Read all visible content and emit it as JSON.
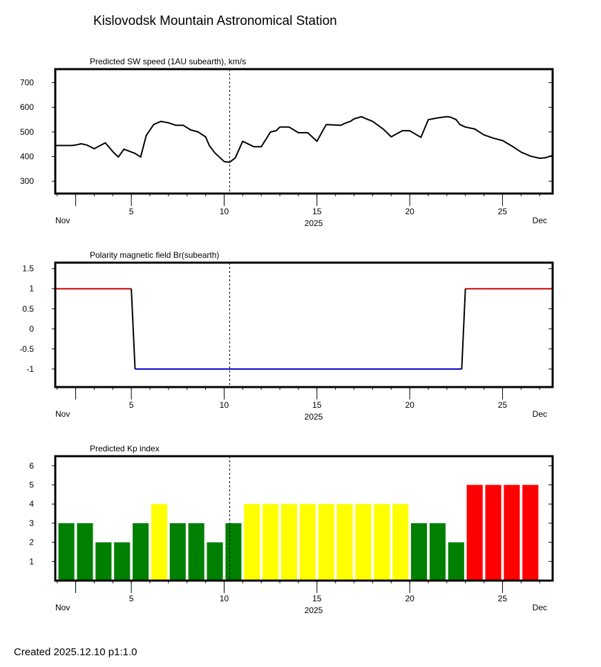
{
  "title": "Kislovodsk Mountain Astronomical Station",
  "footer": "Created  2025.12.10    p1:1.0",
  "chart_data": [
    {
      "type": "line",
      "title": "Predicted SW speed (1AU subearth), km/s",
      "xlabel": "2025",
      "x_start_label": "Nov",
      "x_end_label": "Dec",
      "xlim": [
        0.9,
        27.7
      ],
      "ylim": [
        250,
        755
      ],
      "yticks": [
        300,
        400,
        500,
        600,
        700
      ],
      "xticks": [
        2,
        5,
        10,
        15,
        20,
        25
      ],
      "xtick_labels": [
        "5",
        "10",
        "15",
        "20",
        "25"
      ],
      "current_time": 10.3,
      "series": [
        {
          "name": "SW speed",
          "color": "#000000",
          "x": [
            0.9,
            1.8,
            2.0,
            2.3,
            2.6,
            3.0,
            3.6,
            4.0,
            4.3,
            4.6,
            5.2,
            5.5,
            5.8,
            6.2,
            6.6,
            7.0,
            7.4,
            7.8,
            8.2,
            8.6,
            9.0,
            9.2,
            9.5,
            10.0,
            10.3,
            10.6,
            11.0,
            11.6,
            12.0,
            12.5,
            12.8,
            13.0,
            13.5,
            14.0,
            14.5,
            15.0,
            15.5,
            16.0,
            16.3,
            16.5,
            16.8,
            17.0,
            17.4,
            17.6,
            18.0,
            18.6,
            19.0,
            19.6,
            20.0,
            20.6,
            21.0,
            21.5,
            22.0,
            22.2,
            22.5,
            22.7,
            23.0,
            23.5,
            24.0,
            24.5,
            25.0,
            25.5,
            26.0,
            26.5,
            27.0,
            27.3,
            27.7
          ],
          "values": [
            445,
            445,
            447,
            452,
            447,
            432,
            456,
            420,
            398,
            430,
            413,
            398,
            485,
            530,
            543,
            537,
            527,
            527,
            508,
            500,
            480,
            445,
            415,
            380,
            377,
            395,
            462,
            440,
            440,
            500,
            505,
            520,
            520,
            497,
            497,
            462,
            530,
            528,
            527,
            535,
            543,
            553,
            562,
            555,
            543,
            510,
            480,
            505,
            505,
            478,
            550,
            557,
            562,
            560,
            550,
            530,
            520,
            512,
            488,
            475,
            465,
            443,
            418,
            402,
            393,
            395,
            405
          ]
        }
      ]
    },
    {
      "type": "line",
      "title": "Polarity magnetic field  Br(subearth)",
      "xlabel": "2025",
      "x_start_label": "Nov",
      "x_end_label": "Dec",
      "xlim": [
        0.9,
        27.7
      ],
      "ylim": [
        -1.45,
        1.65
      ],
      "yticks": [
        1.5,
        1,
        0.5,
        0,
        -0.5,
        -1
      ],
      "ytick_labels": [
        "1.5",
        "1",
        "0.5",
        "0",
        "-0.5",
        "-1"
      ],
      "xticks": [
        2,
        5,
        10,
        15,
        20,
        25
      ],
      "xtick_labels": [
        "5",
        "10",
        "15",
        "20",
        "25"
      ],
      "current_time": 10.3,
      "series": [
        {
          "name": "positive",
          "color": "#cc0000",
          "x": [
            0.9,
            5.0
          ],
          "values": [
            1,
            1
          ]
        },
        {
          "name": "transition",
          "color": "#000000",
          "x": [
            5.0,
            5.2
          ],
          "values": [
            1,
            -1
          ]
        },
        {
          "name": "negative",
          "color": "#0000cc",
          "x": [
            5.2,
            22.8
          ],
          "values": [
            -1,
            -1
          ]
        },
        {
          "name": "transition",
          "color": "#000000",
          "x": [
            22.8,
            23.0
          ],
          "values": [
            -1,
            1
          ]
        },
        {
          "name": "positive",
          "color": "#cc0000",
          "x": [
            23.0,
            27.7
          ],
          "values": [
            1,
            1
          ]
        }
      ]
    },
    {
      "type": "bar",
      "title": "Predicted Kp index",
      "xlabel": "2025",
      "x_start_label": "Nov",
      "x_end_label": "Dec",
      "xlim": [
        0.9,
        27.7
      ],
      "ylim": [
        0,
        6.5
      ],
      "yticks": [
        1,
        2,
        3,
        4,
        5,
        6
      ],
      "xticks": [
        2,
        5,
        10,
        15,
        20,
        25
      ],
      "xtick_labels": [
        "5",
        "10",
        "15",
        "20",
        "25"
      ],
      "current_time": 10.3,
      "colors": {
        "quiet": "#008000",
        "active": "#ffff00",
        "storm": "#ff0000"
      },
      "bars": [
        {
          "x": 1.5,
          "value": 3,
          "color": "#008000"
        },
        {
          "x": 2.5,
          "value": 3,
          "color": "#008000"
        },
        {
          "x": 3.5,
          "value": 2,
          "color": "#008000"
        },
        {
          "x": 4.5,
          "value": 2,
          "color": "#008000"
        },
        {
          "x": 5.5,
          "value": 3,
          "color": "#008000"
        },
        {
          "x": 6.5,
          "value": 4,
          "color": "#ffff00"
        },
        {
          "x": 7.5,
          "value": 3,
          "color": "#008000"
        },
        {
          "x": 8.5,
          "value": 3,
          "color": "#008000"
        },
        {
          "x": 9.5,
          "value": 2,
          "color": "#008000"
        },
        {
          "x": 10.5,
          "value": 3,
          "color": "#008000"
        },
        {
          "x": 11.5,
          "value": 4,
          "color": "#ffff00"
        },
        {
          "x": 12.5,
          "value": 4,
          "color": "#ffff00"
        },
        {
          "x": 13.5,
          "value": 4,
          "color": "#ffff00"
        },
        {
          "x": 14.5,
          "value": 4,
          "color": "#ffff00"
        },
        {
          "x": 15.5,
          "value": 4,
          "color": "#ffff00"
        },
        {
          "x": 16.5,
          "value": 4,
          "color": "#ffff00"
        },
        {
          "x": 17.5,
          "value": 4,
          "color": "#ffff00"
        },
        {
          "x": 18.5,
          "value": 4,
          "color": "#ffff00"
        },
        {
          "x": 19.5,
          "value": 4,
          "color": "#ffff00"
        },
        {
          "x": 20.5,
          "value": 3,
          "color": "#008000"
        },
        {
          "x": 21.5,
          "value": 3,
          "color": "#008000"
        },
        {
          "x": 22.5,
          "value": 2,
          "color": "#008000"
        },
        {
          "x": 23.5,
          "value": 5,
          "color": "#ff0000"
        },
        {
          "x": 24.5,
          "value": 5,
          "color": "#ff0000"
        },
        {
          "x": 25.5,
          "value": 5,
          "color": "#ff0000"
        },
        {
          "x": 26.5,
          "value": 5,
          "color": "#ff0000"
        }
      ]
    }
  ]
}
